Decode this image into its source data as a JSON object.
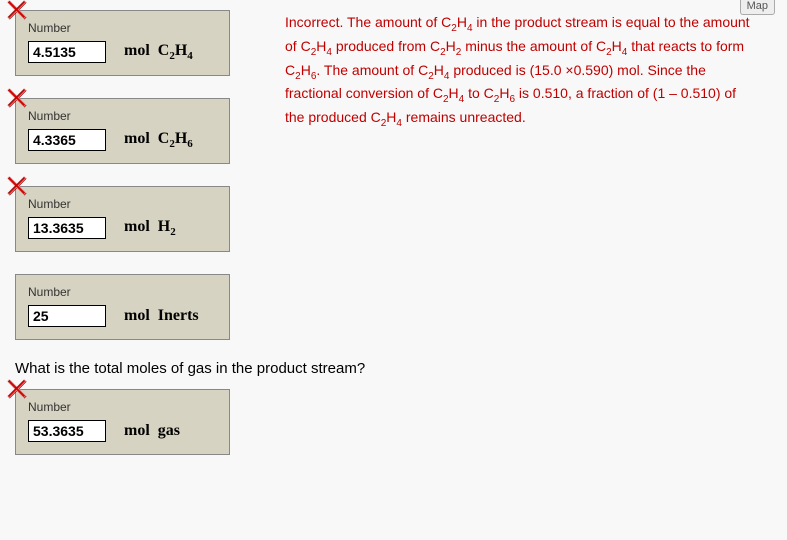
{
  "map_button": "Map",
  "boxes": [
    {
      "label": "Number",
      "value": "4.5135",
      "unit_html": "mol&nbsp;&nbsp;C<sub>2</sub>H<sub>4</sub>",
      "incorrect": true
    },
    {
      "label": "Number",
      "value": "4.3365",
      "unit_html": "mol&nbsp;&nbsp;C<sub>2</sub>H<sub>6</sub>",
      "incorrect": true
    },
    {
      "label": "Number",
      "value": "13.3635",
      "unit_html": "mol&nbsp;&nbsp;H<sub>2</sub>",
      "incorrect": true
    },
    {
      "label": "Number",
      "value": "25",
      "unit_html": "mol&nbsp;&nbsp;Inerts",
      "incorrect": false
    }
  ],
  "feedback_html": "Incorrect. The amount of C<sub>2</sub>H<sub>4</sub> in the product stream is equal to the amount of C<sub>2</sub>H<sub>4</sub> produced from C<sub>2</sub>H<sub>2</sub> minus the amount of C<sub>2</sub>H<sub>4</sub> that reacts to form C<sub>2</sub>H<sub>6</sub>. The amount of C<sub>2</sub>H<sub>4</sub> produced is (15.0 ×0.590) mol. Since the fractional conversion of C<sub>2</sub>H<sub>4</sub> to C<sub>2</sub>H<sub>6</sub> is 0.510, a fraction of (1 – 0.510) of the produced C<sub>2</sub>H<sub>4</sub> remains unreacted.",
  "question": "What is the total moles of gas in the product stream?",
  "final_box": {
    "label": "Number",
    "value": "53.3635",
    "unit_html": "mol&nbsp;&nbsp;gas",
    "incorrect": true
  },
  "colors": {
    "box_bg": "#d6d3c2",
    "feedback": "#c00000",
    "x_bevel_light": "#ffcfcf",
    "x_bevel_dark": "#7a0000",
    "x_fill": "#d40000"
  }
}
